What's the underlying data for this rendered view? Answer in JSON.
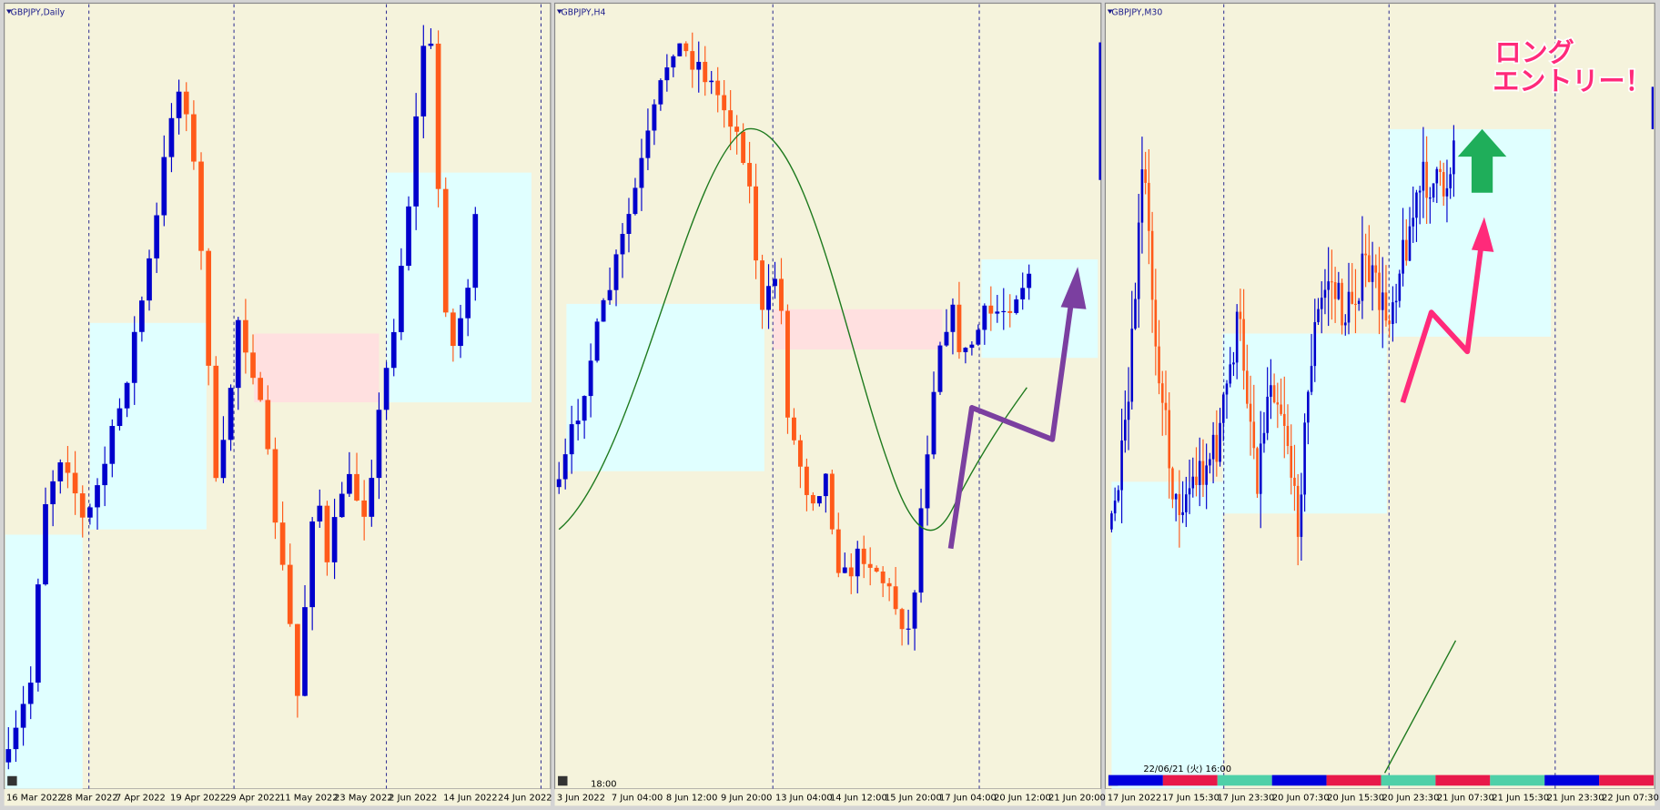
{
  "panels": [
    {
      "title": "GBPJPY,Daily",
      "x_labels": [
        "16 Mar 2022",
        "28 Mar 2022",
        "7 Apr 2022",
        "19 Apr 2022",
        "29 Apr 2022",
        "11 May 2022",
        "23 May 2022",
        "2 Jun 2022",
        "14 Jun 2022",
        "24 Jun 2022"
      ]
    },
    {
      "title": "GBPJPY,H4",
      "time": "18:00",
      "x_labels": [
        "3 Jun 2022",
        "7 Jun 04:00",
        "8 Jun 12:00",
        "9 Jun 20:00",
        "13 Jun 04:00",
        "14 Jun 12:00",
        "15 Jun 20:00",
        "17 Jun 04:00",
        "20 Jun 12:00",
        "21 Jun 20:00"
      ]
    },
    {
      "title": "GBPJPY,M30",
      "time": "22/06/21 (火) 16:00",
      "x_labels": [
        "17 Jun 2022",
        "17 Jun 15:30",
        "17 Jun 23:30",
        "20 Jun 07:30",
        "20 Jun 15:30",
        "20 Jun 23:30",
        "21 Jun 07:30",
        "21 Jun 15:30",
        "21 Jun 23:30",
        "22 Jun 07:30"
      ]
    }
  ],
  "annotation": [
    "ロング",
    "エントリー！"
  ]
}
